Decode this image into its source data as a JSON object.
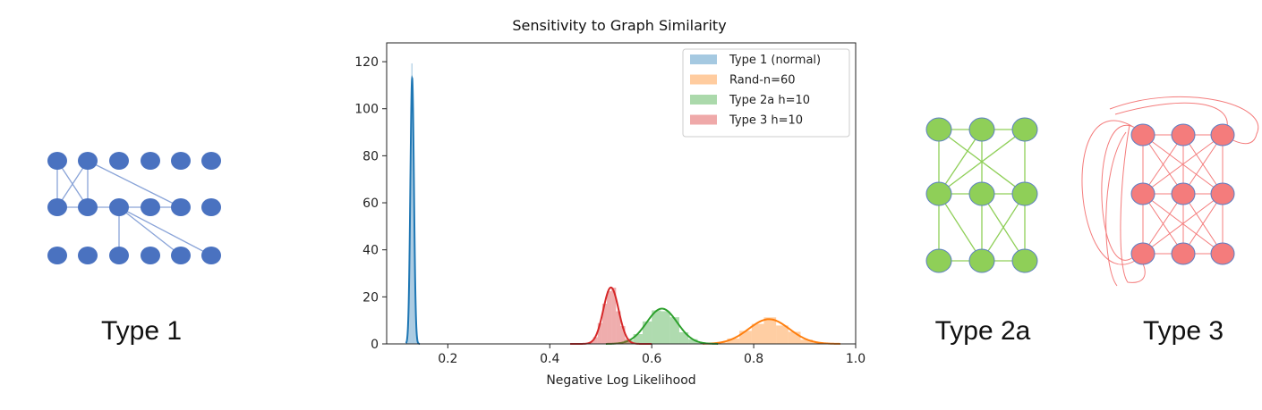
{
  "diagrams": [
    {
      "caption": "Type 1"
    },
    {
      "caption": "Type 2a"
    },
    {
      "caption": "Type 3"
    }
  ],
  "colors": {
    "type1_node": "#4a72c0",
    "type1_edge": "#8aa4d8",
    "type2a_node": "#8fcf58",
    "type2a_edge": "#8fcf58",
    "type3_node": "#f47c7c",
    "type3_edge": "#f47c7c",
    "node_outline": "#5b7ec4"
  },
  "chart_data": {
    "type": "histogram",
    "title": "Sensitivity to Graph Similarity",
    "xlabel": "Negative Log Likelihood",
    "ylabel": "",
    "xlim": [
      0.08,
      1.0
    ],
    "ylim": [
      0,
      128
    ],
    "xticks": [
      0.2,
      0.4,
      0.6,
      0.8,
      1.0
    ],
    "xtick_labels": [
      "0.2",
      "0.4",
      "0.6",
      "0.8",
      "1.0"
    ],
    "yticks": [
      0,
      20,
      40,
      60,
      80,
      100,
      120
    ],
    "ytick_labels": [
      "0",
      "20",
      "40",
      "60",
      "80",
      "100",
      "120"
    ],
    "grid": false,
    "legend_position": "top-right",
    "series": [
      {
        "name": "Type 1 (normal)",
        "color": "#1f77b4",
        "center": 0.13,
        "peak": 113,
        "spread": 0.0035,
        "range": [
          0.118,
          0.145
        ]
      },
      {
        "name": "Rand-n=60",
        "color": "#ff7f0e",
        "center": 0.83,
        "peak": 10.5,
        "spread": 0.04,
        "range": [
          0.7,
          0.97
        ]
      },
      {
        "name": "Type 2a h=10",
        "color": "#2ca02c",
        "center": 0.62,
        "peak": 15,
        "spread": 0.03,
        "range": [
          0.51,
          0.73
        ]
      },
      {
        "name": "Type 3 h=10",
        "color": "#d62728",
        "center": 0.52,
        "peak": 24,
        "spread": 0.015,
        "range": [
          0.44,
          0.6
        ]
      }
    ]
  }
}
